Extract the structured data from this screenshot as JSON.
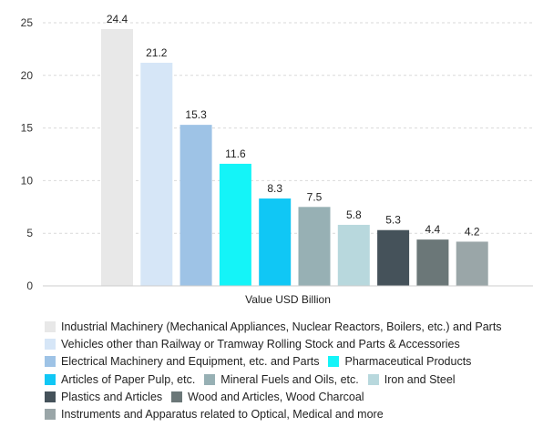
{
  "chart_data": {
    "type": "bar",
    "xlabel": "Value USD Billion",
    "ylabel": "",
    "ylim": [
      0,
      25
    ],
    "yticks": [
      0,
      5,
      10,
      15,
      20,
      25
    ],
    "grid": true,
    "legend_position": "bottom",
    "series": [
      {
        "name": "Industrial Machinery (Mechanical Appliances, Nuclear Reactors, Boilers, etc.) and Parts",
        "value": 24.4,
        "label": "24.4",
        "color": "#e8e8e8"
      },
      {
        "name": "Vehicles other than Railway or Tramway Rolling Stock and Parts & Accessories",
        "value": 21.2,
        "label": "21.2",
        "color": "#d6e6f7"
      },
      {
        "name": "Electrical Machinery and Equipment, etc. and Parts",
        "value": 15.3,
        "label": "15.3",
        "color": "#9ec3e6"
      },
      {
        "name": "Pharmaceutical Products",
        "value": 11.6,
        "label": "11.6",
        "color": "#14f4f8"
      },
      {
        "name": "Articles of Paper Pulp, etc.",
        "value": 8.3,
        "label": "8.3",
        "color": "#10c7f5"
      },
      {
        "name": "Mineral Fuels and Oils, etc.",
        "value": 7.5,
        "label": "7.5",
        "color": "#97b0b4"
      },
      {
        "name": "Iron and Steel",
        "value": 5.8,
        "label": "5.8",
        "color": "#b8d8dd"
      },
      {
        "name": "Plastics and Articles",
        "value": 5.3,
        "label": "5.3",
        "color": "#45525a"
      },
      {
        "name": "Wood and Articles, Wood Charcoal",
        "value": 4.4,
        "label": "4.4",
        "color": "#6b7778"
      },
      {
        "name": "Instruments and Apparatus related to Optical, Medical and more",
        "value": 4.2,
        "label": "4.2",
        "color": "#9aa6a8"
      }
    ]
  },
  "colors": {
    "grid": "#d9d9d9",
    "axis": "#cccccc"
  }
}
